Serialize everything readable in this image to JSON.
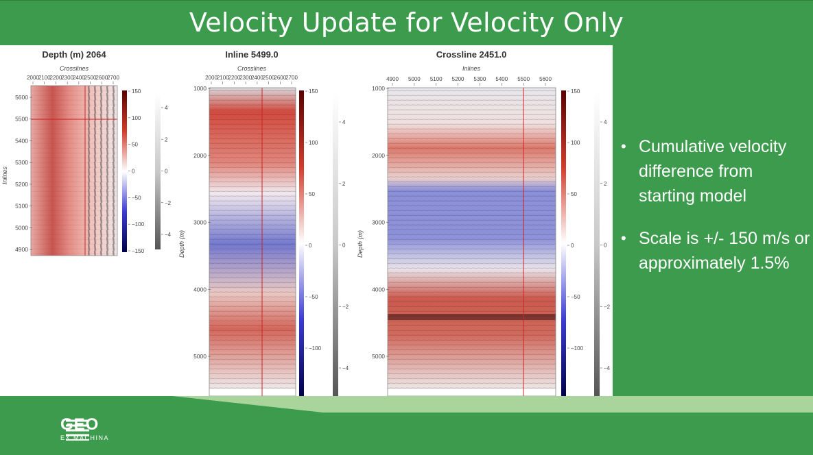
{
  "slide": {
    "title": "Velocity Update for Velocity Only",
    "bullets": [
      "Cumulative velocity difference from starting model",
      "Scale is +/- 150 m/s or approximately 1.5%"
    ]
  },
  "logo": {
    "name": "GEO",
    "sub": "EX MACHINA"
  },
  "plots": {
    "depth": {
      "title": "Depth (m) 2064",
      "xlabel": "Crosslines",
      "ylabel": "Inlines",
      "xticks": [
        "2000",
        "2100",
        "2200",
        "2300",
        "2400",
        "2500",
        "2600",
        "2700"
      ],
      "yticks": [
        "5600",
        "5500",
        "5400",
        "5300",
        "5200",
        "5100",
        "5000",
        "4900"
      ],
      "cbar_red": [
        "150",
        "100",
        "50",
        "0",
        "−50",
        "−100",
        "−150"
      ],
      "cbar_gray": [
        "4",
        "2",
        "0",
        "−2",
        "−4"
      ]
    },
    "inline": {
      "title": "Inline 5499.0",
      "xlabel": "Crosslines",
      "ylabel": "Depth (m)",
      "xticks": [
        "2000",
        "2100",
        "2200",
        "2300",
        "2400",
        "2500",
        "2600",
        "2700"
      ],
      "yticks": [
        "1000",
        "2000",
        "3000",
        "4000",
        "5000"
      ],
      "cbar_red": [
        "150",
        "100",
        "50",
        "0",
        "−50",
        "−100"
      ],
      "cbar_gray": [
        "4",
        "2",
        "0",
        "−2",
        "−4"
      ]
    },
    "crossline": {
      "title": "Crossline 2451.0",
      "xlabel": "Inlines",
      "ylabel": "Depth (m)",
      "xticks": [
        "4900",
        "5000",
        "5100",
        "5200",
        "5300",
        "5400",
        "5500",
        "5600"
      ],
      "yticks": [
        "1000",
        "2000",
        "3000",
        "4000",
        "5000"
      ],
      "cbar_red": [
        "150",
        "100",
        "50",
        "0",
        "−50",
        "−100"
      ],
      "cbar_gray": [
        "4",
        "2",
        "0",
        "−2",
        "−4"
      ]
    }
  },
  "colors": {
    "brand_green": "#3d9b4d",
    "velocity_pos": "#b31b1b",
    "velocity_neg": "#1a1ab5",
    "marker_line": "#d02020"
  }
}
